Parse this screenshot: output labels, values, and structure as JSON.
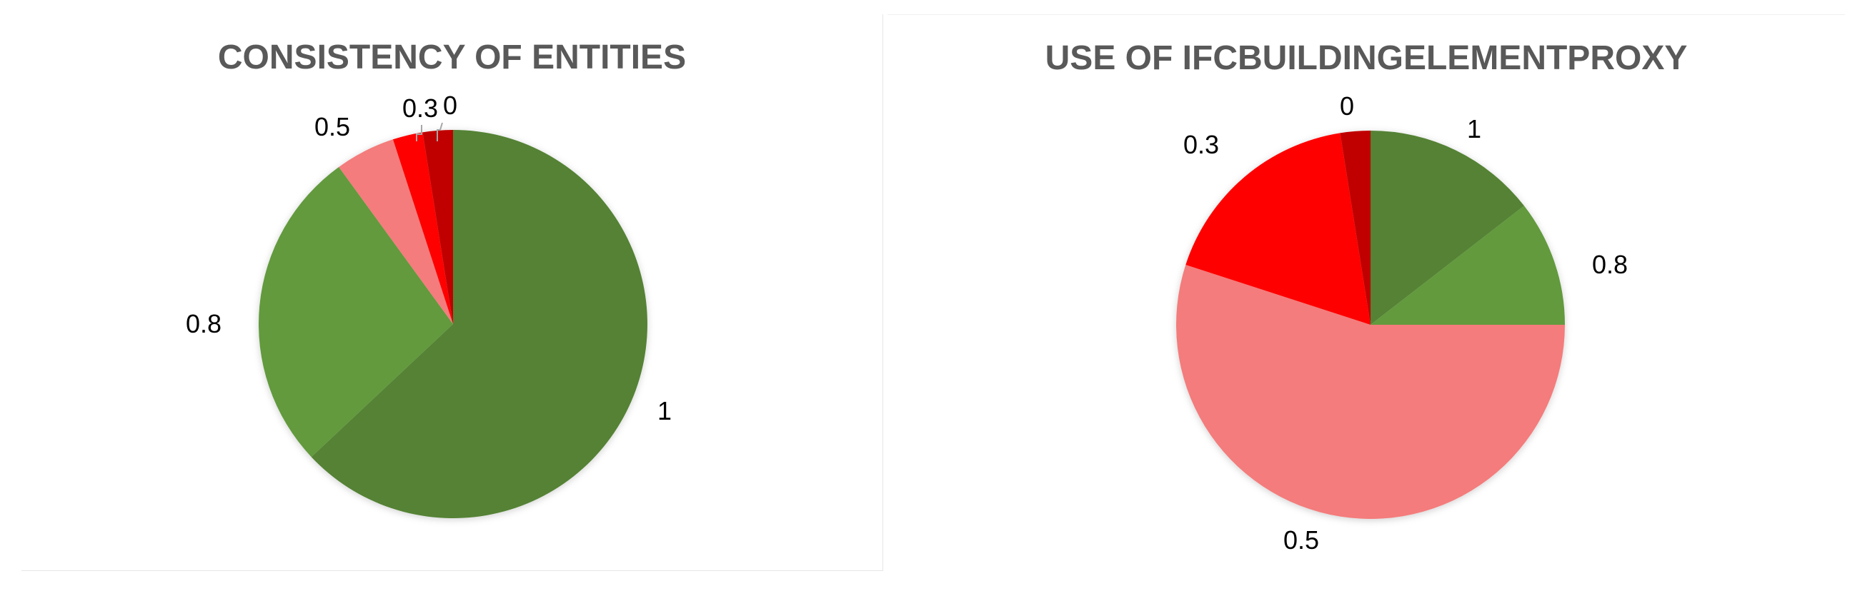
{
  "chart_data": [
    {
      "type": "pie",
      "title": "CONSISTENCY OF ENTITIES",
      "categories": [
        "1",
        "0.8",
        "0.5",
        "0.3",
        "0"
      ],
      "values": [
        63,
        27,
        5,
        2.5,
        2.5
      ],
      "colors": [
        "#548235",
        "#629A3E",
        "#F47C7C",
        "#FF0000",
        "#C00000"
      ]
    },
    {
      "type": "pie",
      "title": "USE OF IFCBUILDINGELEMENTPROXY",
      "categories": [
        "1",
        "0.8",
        "0.5",
        "0.3",
        "0"
      ],
      "values": [
        14.5,
        10.5,
        55,
        17.5,
        2.5
      ],
      "colors": [
        "#548235",
        "#629A3E",
        "#F47C7C",
        "#FF0000",
        "#C00000"
      ]
    }
  ]
}
